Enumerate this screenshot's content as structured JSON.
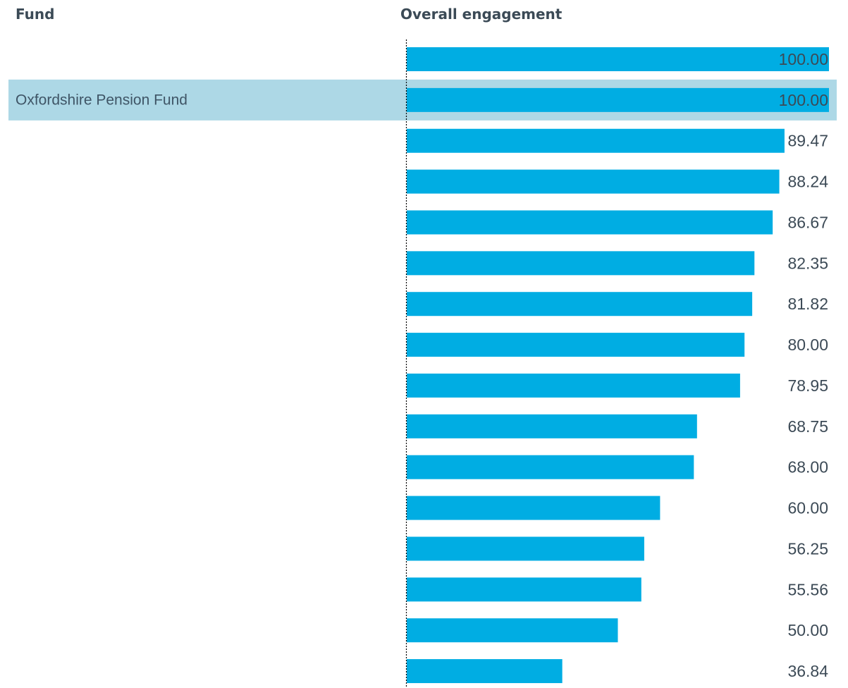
{
  "header": {
    "fund_label": "Fund",
    "metric_label": "Overall engagement"
  },
  "colors": {
    "bar": "#00ade3",
    "highlight_row": "#add8e6",
    "header_text": "#3b4a56",
    "value_text": "#3c4a56",
    "category_text": "#3f5566",
    "axis_line": "#000000"
  },
  "chart_data": {
    "type": "bar",
    "orientation": "horizontal",
    "xlim": [
      0,
      100
    ],
    "categories": [
      "",
      "Oxfordshire Pension Fund",
      "",
      "",
      "",
      "",
      "",
      "",
      "",
      "",
      "",
      "",
      "",
      "",
      "",
      ""
    ],
    "highlighted_category": "Oxfordshire Pension Fund",
    "values": [
      100.0,
      100.0,
      89.47,
      88.24,
      86.67,
      82.35,
      81.82,
      80.0,
      78.95,
      68.75,
      68.0,
      60.0,
      56.25,
      55.56,
      50.0,
      36.84
    ],
    "value_labels": [
      "100.00",
      "100.00",
      "89.47",
      "88.24",
      "86.67",
      "82.35",
      "81.82",
      "80.00",
      "78.95",
      "68.75",
      "68.00",
      "60.00",
      "56.25",
      "55.56",
      "50.00",
      "36.84"
    ],
    "axis_style": "dotted",
    "grid": false,
    "legend": "none"
  }
}
